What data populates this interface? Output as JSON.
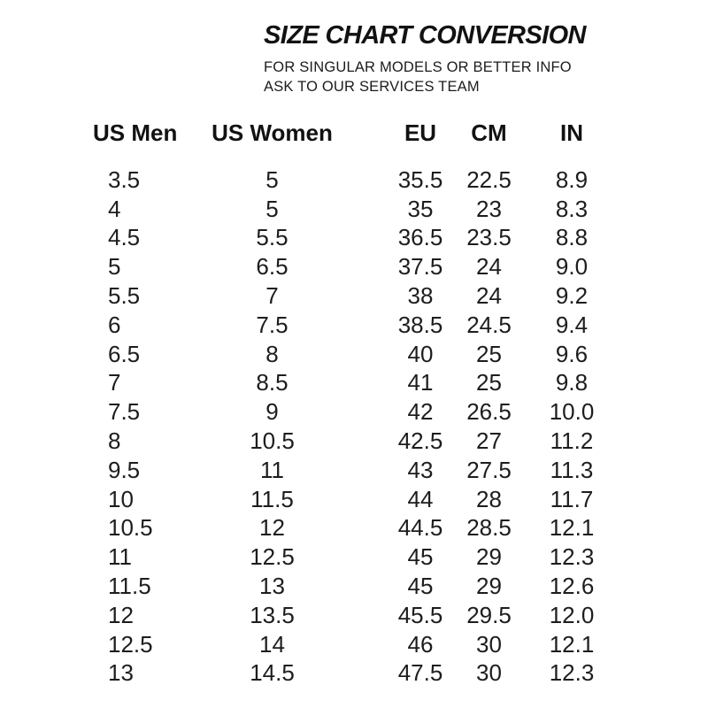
{
  "header": {
    "title": "SIZE CHART CONVERSION",
    "subtitle_line1": "FOR SINGULAR MODELS OR BETTER INFO",
    "subtitle_line2": "ASK TO OUR SERVICES TEAM"
  },
  "colors": {
    "background": "#ffffff",
    "text": "#161616"
  },
  "chart_data": {
    "type": "table",
    "title": "SIZE CHART CONVERSION",
    "columns": [
      "US Men",
      "US Women",
      "EU",
      "CM",
      "IN"
    ],
    "rows": [
      [
        "3.5",
        "5",
        "35.5",
        "22.5",
        "8.9"
      ],
      [
        "4",
        "5",
        "35",
        "23",
        "8.3"
      ],
      [
        "4.5",
        "5.5",
        "36.5",
        "23.5",
        "8.8"
      ],
      [
        "5",
        "6.5",
        "37.5",
        "24",
        "9.0"
      ],
      [
        "5.5",
        "7",
        "38",
        "24",
        "9.2"
      ],
      [
        "6",
        "7.5",
        "38.5",
        "24.5",
        "9.4"
      ],
      [
        "6.5",
        "8",
        "40",
        "25",
        "9.6"
      ],
      [
        "7",
        "8.5",
        "41",
        "25",
        "9.8"
      ],
      [
        "7.5",
        "9",
        "42",
        "26.5",
        "10.0"
      ],
      [
        "8",
        "10.5",
        "42.5",
        "27",
        "11.2"
      ],
      [
        "9.5",
        "11",
        "43",
        "27.5",
        "11.3"
      ],
      [
        "10",
        "11.5",
        "44",
        "28",
        "11.7"
      ],
      [
        "10.5",
        "12",
        "44.5",
        "28.5",
        "12.1"
      ],
      [
        "11",
        "12.5",
        "45",
        "29",
        "12.3"
      ],
      [
        "11.5",
        "13",
        "45",
        "29",
        "12.6"
      ],
      [
        "12",
        "13.5",
        "45.5",
        "29.5",
        "12.0"
      ],
      [
        "12.5",
        "14",
        "46",
        "30",
        "12.1"
      ],
      [
        "13",
        "14.5",
        "47.5",
        "30",
        "12.3"
      ]
    ]
  }
}
